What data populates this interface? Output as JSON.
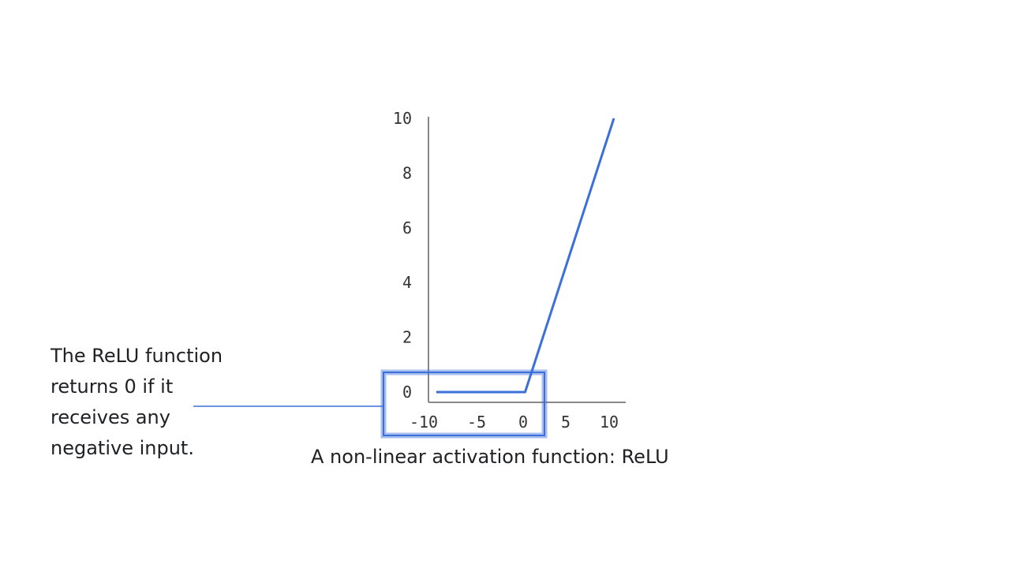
{
  "chart_data": {
    "type": "line",
    "title": "A non-linear activation function: ReLU",
    "xlabel": "",
    "ylabel": "",
    "x_ticks": [
      "-10",
      "-5",
      "0",
      "5",
      "10"
    ],
    "y_ticks": [
      "0",
      "2",
      "4",
      "6",
      "8",
      "10"
    ],
    "xlim": [
      -10,
      10
    ],
    "ylim": [
      0,
      10
    ],
    "series": [
      {
        "x": [
          -10,
          -5,
          0,
          5,
          10
        ],
        "y": [
          0,
          0,
          0,
          5,
          10
        ],
        "color": "#3b6fd9"
      }
    ],
    "highlight": {
      "x_range": [
        -10,
        0
      ],
      "color": "#3b6fd9"
    },
    "grid": false
  },
  "callout": {
    "lines": [
      "The ReLU function",
      "returns 0 if it",
      "receives any",
      "negative input."
    ]
  },
  "colors": {
    "line": "#3b6fd9",
    "axis": "#888888",
    "text": "#202124"
  }
}
